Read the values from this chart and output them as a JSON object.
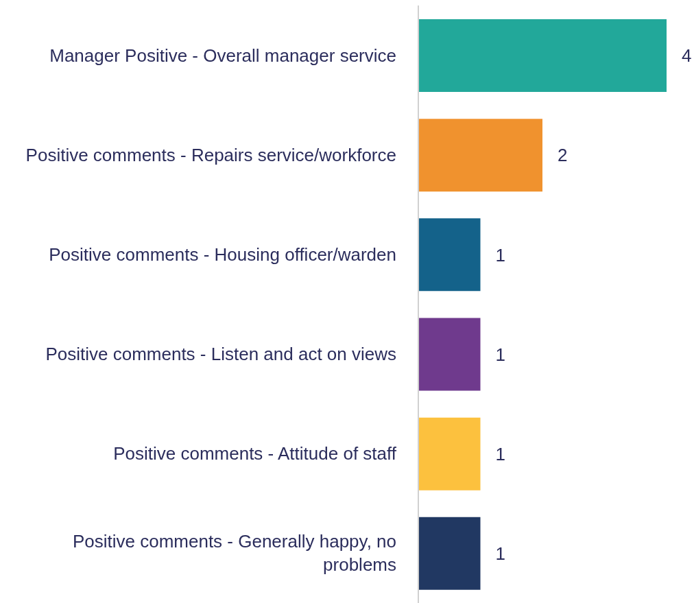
{
  "chart_data": {
    "type": "bar",
    "orientation": "horizontal",
    "categories": [
      "Manager Positive - Overall manager service",
      "Positive comments - Repairs service/workforce",
      "Positive comments - Housing officer/warden",
      "Positive comments - Listen and act on views",
      "Positive comments - Attitude of staff",
      "Positive comments - Generally happy, no problems"
    ],
    "values": [
      4,
      2,
      1,
      1,
      1,
      1
    ],
    "colors": [
      "#22a89a",
      "#f0922e",
      "#14628a",
      "#6f3a8d",
      "#fcc13e",
      "#213862"
    ],
    "xlim": [
      0,
      4
    ],
    "tick_labels": "y",
    "data_labels": true
  }
}
